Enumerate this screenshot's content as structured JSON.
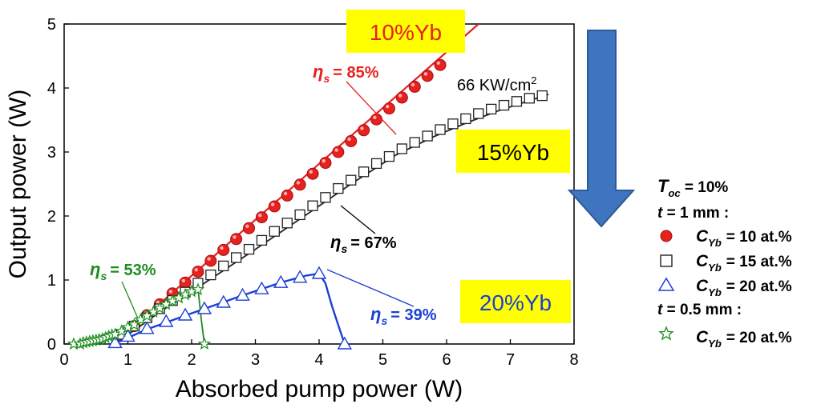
{
  "chart_data": {
    "type": "scatter",
    "xlabel": "Absorbed pump power (W)",
    "ylabel": "Output power (W)",
    "xlim": [
      0,
      8
    ],
    "ylim": [
      0,
      5
    ],
    "x_ticks": [
      "0",
      "1",
      "2",
      "3",
      "4",
      "5",
      "6",
      "7",
      "8"
    ],
    "y_ticks": [
      "0",
      "1",
      "2",
      "3",
      "4",
      "5"
    ],
    "grid": false,
    "legend_position": "right",
    "legend": {
      "toc_symbol": "T",
      "toc_sub": "oc",
      "toc_value": " = 10%",
      "thick1_sym": "t",
      "thick1_val": " = 1 mm :",
      "thick2_sym": "t",
      "thick2_val": " = 0.5 mm :",
      "cyb_symbol": "C",
      "cyb_sub": "Yb",
      "entries": [
        {
          "value": "= 10 at.%",
          "marker": "circle",
          "color": "#e8201e"
        },
        {
          "value": "= 15 at.%",
          "marker": "square",
          "color": "#222222"
        },
        {
          "value": "= 20 at.%",
          "marker": "triangle",
          "color": "#1c3fd6"
        },
        {
          "value": "= 20 at.%",
          "marker": "star",
          "color": "#1e8c1e"
        }
      ]
    },
    "annotations": {
      "eta_symbol": "η",
      "eta_sub": "s",
      "eta_red": "= 85%",
      "eta_black": "= 67%",
      "eta_blue": "= 39%",
      "eta_green": "= 53%",
      "intensity": "66 KW/cm",
      "intensity_sup": "2",
      "box_10": "10%Yb",
      "box_15": "15%Yb",
      "box_20": "20%Yb"
    },
    "colors": {
      "box_fill": "#ffff00",
      "arrow": "#3f74bf"
    },
    "series": [
      {
        "marker": "circle",
        "color": "#e8201e",
        "x": [
          1.1,
          1.3,
          1.5,
          1.7,
          1.9,
          2.1,
          2.3,
          2.5,
          2.7,
          2.9,
          3.1,
          3.3,
          3.5,
          3.7,
          3.9,
          4.1,
          4.3,
          4.5,
          4.7,
          4.9,
          5.1,
          5.3,
          5.5,
          5.7,
          5.9
        ],
        "y": [
          0.28,
          0.45,
          0.62,
          0.79,
          0.96,
          1.13,
          1.3,
          1.47,
          1.64,
          1.81,
          1.98,
          2.15,
          2.32,
          2.49,
          2.66,
          2.83,
          3.0,
          3.17,
          3.34,
          3.51,
          3.68,
          3.85,
          4.02,
          4.19,
          4.36
        ],
        "fit_x": [
          0.78,
          6.5
        ],
        "fit_y": [
          0,
          5
        ]
      },
      {
        "marker": "square",
        "color": "#222222",
        "x": [
          0.9,
          1.1,
          1.3,
          1.5,
          1.7,
          1.9,
          2.1,
          2.3,
          2.5,
          2.7,
          2.9,
          3.1,
          3.3,
          3.5,
          3.7,
          3.9,
          4.1,
          4.3,
          4.5,
          4.7,
          4.9,
          5.1,
          5.3,
          5.5,
          5.7,
          5.9,
          6.1,
          6.3,
          6.5,
          6.7,
          6.9,
          7.1,
          7.3,
          7.5
        ],
        "y": [
          0.15,
          0.28,
          0.41,
          0.55,
          0.68,
          0.81,
          0.95,
          1.08,
          1.22,
          1.35,
          1.48,
          1.62,
          1.76,
          1.89,
          2.02,
          2.16,
          2.29,
          2.43,
          2.56,
          2.69,
          2.82,
          2.93,
          3.05,
          3.15,
          3.25,
          3.35,
          3.44,
          3.52,
          3.6,
          3.67,
          3.73,
          3.79,
          3.84,
          3.88
        ],
        "fit_x": [
          0.8,
          1.5,
          2.2,
          3.0,
          3.8,
          4.5,
          5.2,
          5.8,
          6.3,
          6.8,
          7.2,
          7.6
        ],
        "fit_y": [
          0.0,
          0.5,
          0.95,
          1.48,
          2.02,
          2.5,
          2.95,
          3.24,
          3.45,
          3.64,
          3.77,
          3.9
        ]
      },
      {
        "marker": "triangle",
        "color": "#1c3fd6",
        "x": [
          0.8,
          1.0,
          1.3,
          1.6,
          1.9,
          2.2,
          2.5,
          2.8,
          3.1,
          3.4,
          3.7,
          4.0,
          4.4
        ],
        "y": [
          0.02,
          0.12,
          0.24,
          0.35,
          0.45,
          0.55,
          0.65,
          0.76,
          0.86,
          0.96,
          1.04,
          1.1,
          0.0
        ],
        "fit_x": [
          0.78,
          1.3,
          2.0,
          2.8,
          3.4,
          3.8,
          4.0,
          4.1,
          4.2,
          4.3,
          4.4
        ],
        "fit_y": [
          0.0,
          0.23,
          0.48,
          0.76,
          0.96,
          1.07,
          1.1,
          0.95,
          0.6,
          0.3,
          0.0
        ]
      },
      {
        "marker": "star",
        "color": "#1e8c1e",
        "x": [
          0.15,
          0.25,
          0.3,
          0.35,
          0.4,
          0.45,
          0.5,
          0.55,
          0.6,
          0.65,
          0.7,
          0.75,
          0.8,
          0.9,
          1.0,
          1.1,
          1.2,
          1.3,
          1.4,
          1.5,
          1.6,
          1.7,
          1.8,
          1.9,
          2.0,
          2.1,
          2.2
        ],
        "y": [
          0.0,
          0.0,
          0.02,
          0.03,
          0.04,
          0.05,
          0.06,
          0.07,
          0.08,
          0.1,
          0.12,
          0.14,
          0.15,
          0.2,
          0.26,
          0.3,
          0.38,
          0.44,
          0.5,
          0.56,
          0.62,
          0.67,
          0.72,
          0.77,
          0.82,
          0.85,
          0.0
        ],
        "fit_x": [
          0.4,
          1.0,
          1.5,
          2.0,
          2.1,
          2.15,
          2.2
        ],
        "fit_y": [
          0.0,
          0.28,
          0.55,
          0.82,
          0.86,
          0.4,
          0.0
        ]
      }
    ]
  }
}
